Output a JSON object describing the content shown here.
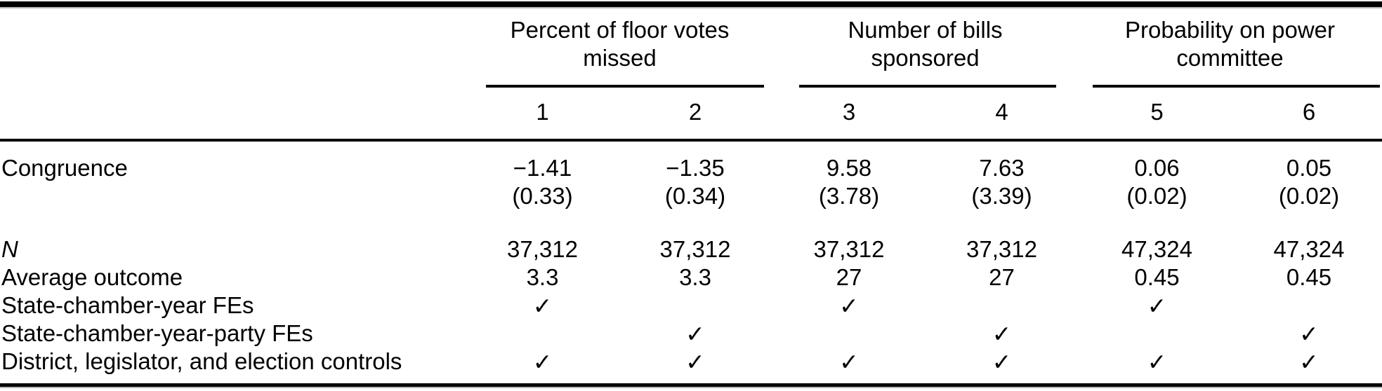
{
  "colors": {
    "background": "#ffffff",
    "text": "#000000",
    "rule": "#000000"
  },
  "check_glyph": "✓",
  "table": {
    "col_groups": [
      {
        "label": "Percent of floor votes missed",
        "columns": [
          "1",
          "2"
        ]
      },
      {
        "label": "Number of bills sponsored",
        "columns": [
          "3",
          "4"
        ]
      },
      {
        "label": "Probability on power committee",
        "columns": [
          "5",
          "6"
        ]
      }
    ],
    "column_numbers": [
      "1",
      "2",
      "3",
      "4",
      "5",
      "6"
    ],
    "rows": [
      {
        "label": "Congruence",
        "values": [
          "−1.41",
          "−1.35",
          "9.58",
          "7.63",
          "0.06",
          "0.05"
        ]
      },
      {
        "label": "",
        "values": [
          "(0.33)",
          "(0.34)",
          "(3.78)",
          "(3.39)",
          "(0.02)",
          "(0.02)"
        ]
      },
      {
        "label": "N",
        "values": [
          "37,312",
          "37,312",
          "37,312",
          "37,312",
          "47,324",
          "47,324"
        ]
      },
      {
        "label": "Average outcome",
        "values": [
          "3.3",
          "3.3",
          "27",
          "27",
          "0.45",
          "0.45"
        ]
      },
      {
        "label": "State-chamber-year FEs",
        "values": [
          "✓",
          "",
          "✓",
          "",
          "✓",
          ""
        ]
      },
      {
        "label": "State-chamber-year-party FEs",
        "values": [
          "",
          "✓",
          "",
          "✓",
          "",
          "✓"
        ]
      },
      {
        "label": "District, legislator, and election controls",
        "values": [
          "✓",
          "✓",
          "✓",
          "✓",
          "✓",
          "✓"
        ]
      }
    ]
  }
}
